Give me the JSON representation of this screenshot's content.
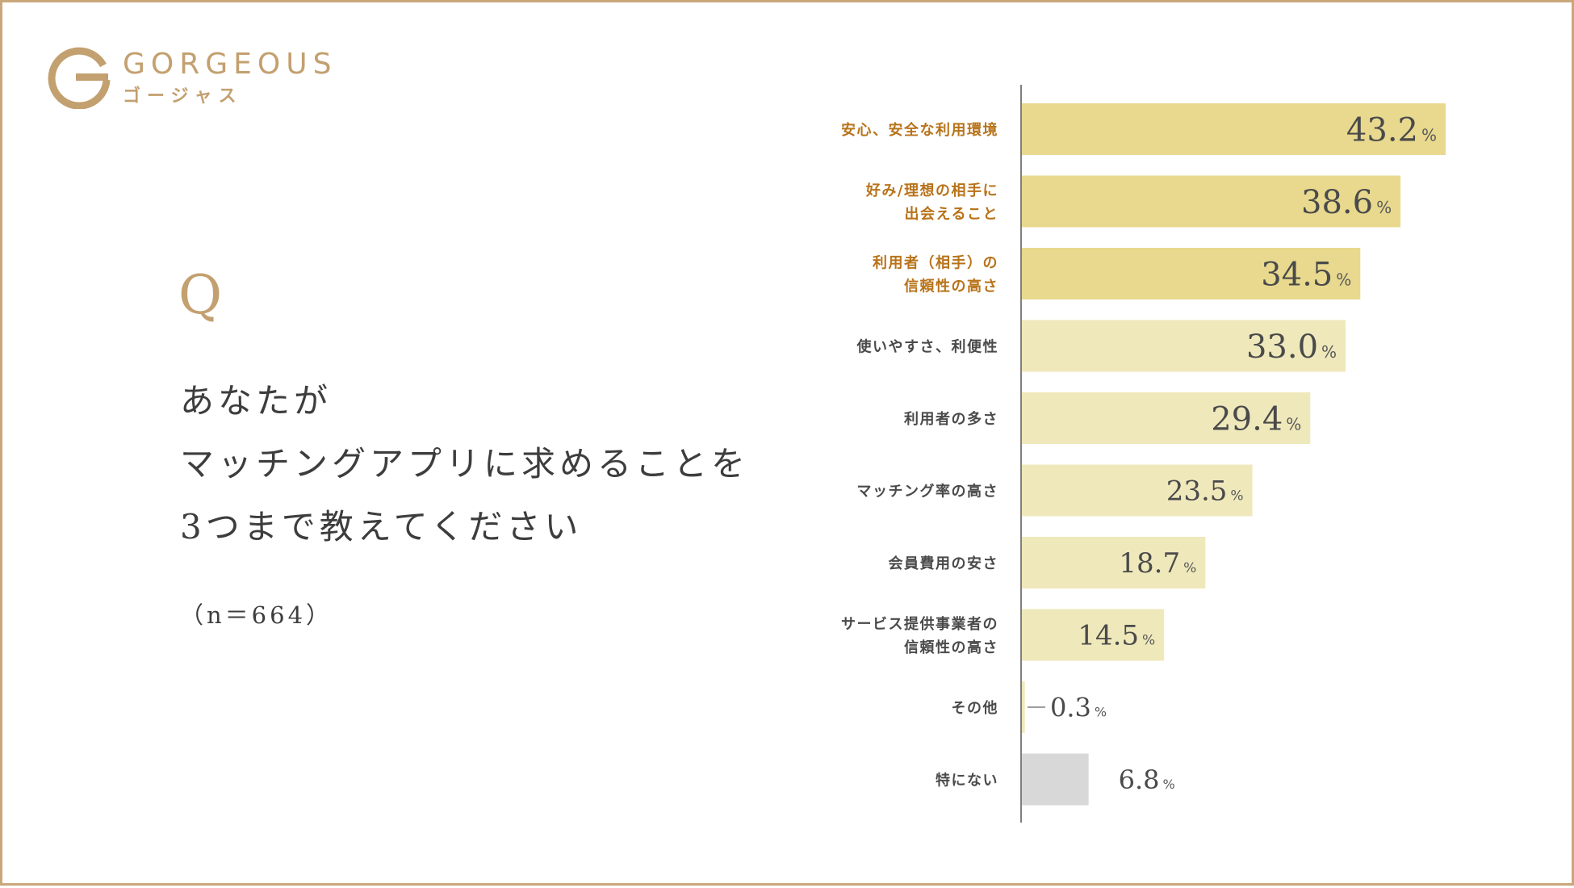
{
  "brand": {
    "name": "GORGEOUS",
    "kana": "ゴージャス",
    "logo_icon": "gorgeous-g-logo-icon",
    "color": "#c3a06f"
  },
  "question": {
    "mark": "Q",
    "lines": [
      "あなたが",
      "マッチングアプリに求めることを",
      "3つまで教えてください"
    ],
    "sample_size": "（n＝664）"
  },
  "colors": {
    "frame": "#c9a77a",
    "bar_top3": "#e8d98e",
    "bar_other": "#efe8bb",
    "bar_none": "#d8d8d8",
    "label_top3": "#b8731a",
    "label_other": "#4a4a4a"
  },
  "chart_data": {
    "type": "bar",
    "orientation": "horizontal",
    "categories": [
      [
        "安心、安全な利用環境"
      ],
      [
        "好み/理想の相手に",
        "出会えること"
      ],
      [
        "利用者（相手）の",
        "信頼性の高さ"
      ],
      [
        "使いやすさ、利便性"
      ],
      [
        "利用者の多さ"
      ],
      [
        "マッチング率の高さ"
      ],
      [
        "会員費用の安さ"
      ],
      [
        "サービス提供事業者の",
        "信頼性の高さ"
      ],
      [
        "その他"
      ],
      [
        "特にない"
      ]
    ],
    "values": [
      43.2,
      38.6,
      34.5,
      33.0,
      29.4,
      23.5,
      18.7,
      14.5,
      0.3,
      6.8
    ],
    "value_labels": [
      "43.2",
      "38.6",
      "34.5",
      "33.0",
      "29.4",
      "23.5",
      "18.7",
      "14.5",
      "0.3",
      "6.8"
    ],
    "unit": "%",
    "highlight": [
      "top",
      "top",
      "top",
      "normal",
      "normal",
      "normal",
      "normal",
      "normal",
      "normal",
      "none"
    ],
    "xlim": [
      0,
      50
    ]
  }
}
